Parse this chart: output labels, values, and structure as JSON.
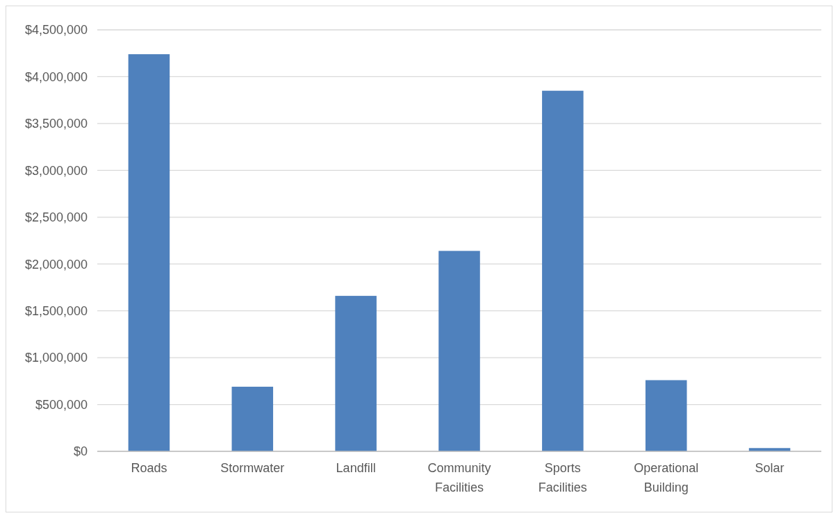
{
  "chart_data": {
    "type": "bar",
    "categories": [
      "Roads",
      "Stormwater",
      "Landfill",
      "Community Facilities",
      "Sports Facilities",
      "Operational Building",
      "Solar"
    ],
    "values": [
      4240000,
      690000,
      1660000,
      2140000,
      3850000,
      760000,
      35000
    ],
    "color": "#4f81bd",
    "ylim": [
      0,
      4500000
    ],
    "yticks": [
      {
        "value": 0,
        "label": "$0"
      },
      {
        "value": 500000,
        "label": "$500,000"
      },
      {
        "value": 1000000,
        "label": "$1,000,000"
      },
      {
        "value": 1500000,
        "label": "$1,500,000"
      },
      {
        "value": 2000000,
        "label": "$2,000,000"
      },
      {
        "value": 2500000,
        "label": "$2,500,000"
      },
      {
        "value": 3000000,
        "label": "$3,000,000"
      },
      {
        "value": 3500000,
        "label": "$3,500,000"
      },
      {
        "value": 4000000,
        "label": "$4,000,000"
      },
      {
        "value": 4500000,
        "label": "$4,500,000"
      }
    ],
    "grid": "y"
  }
}
